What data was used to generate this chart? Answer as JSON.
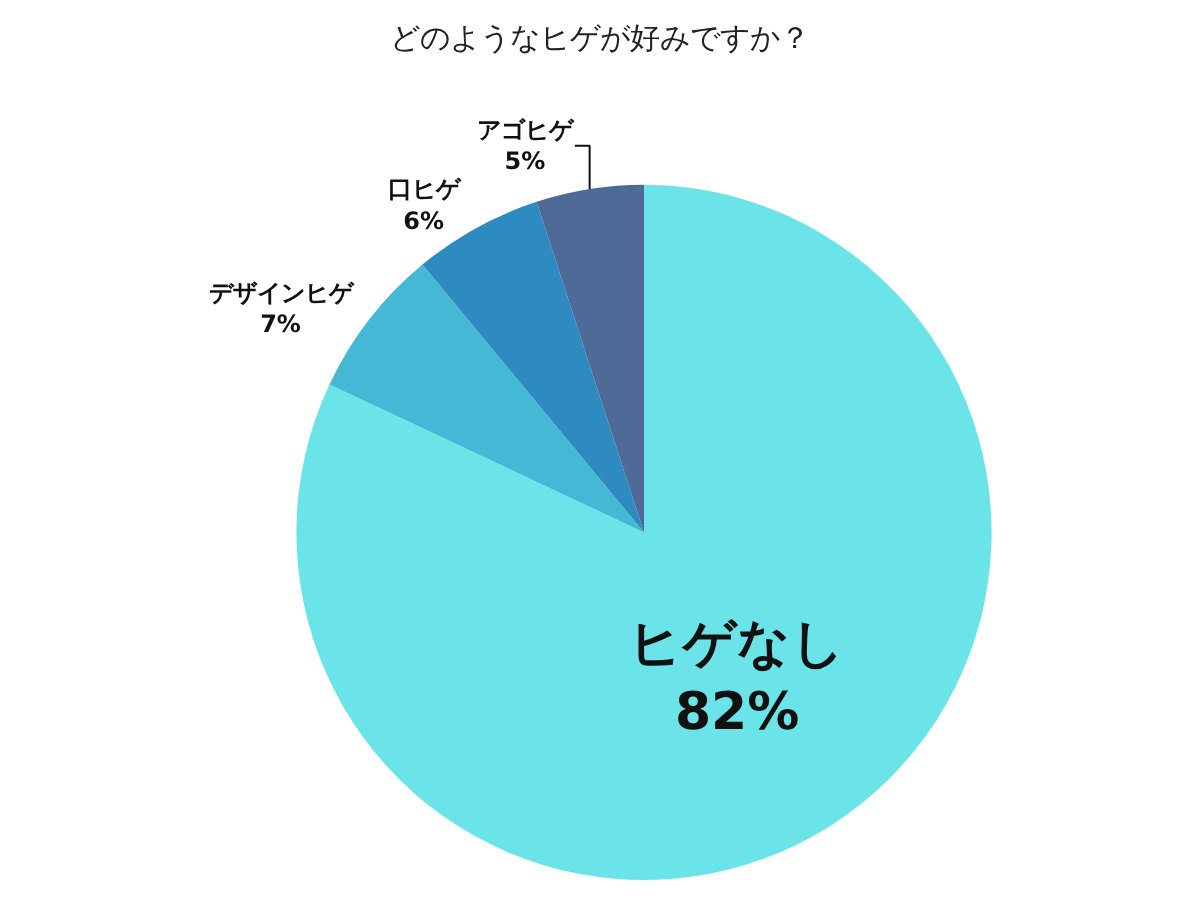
{
  "chart_data": {
    "type": "pie",
    "title": "どのようなヒゲが好みですか？",
    "categories": [
      "ヒゲなし",
      "デザインヒゲ",
      "口ヒゲ",
      "アゴヒゲ"
    ],
    "values": [
      82,
      7,
      6,
      5
    ],
    "value_labels": [
      "82%",
      "7%",
      "6%",
      "5%"
    ],
    "colors": [
      "#6ae4e8",
      "#45b8d6",
      "#2e8bbf",
      "#4e6a96"
    ],
    "legend": false
  }
}
